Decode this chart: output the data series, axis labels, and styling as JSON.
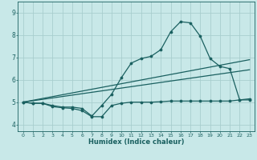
{
  "xlabel": "Humidex (Indice chaleur)",
  "background_color": "#c8e8e8",
  "grid_color": "#a8cece",
  "line_color": "#1a6060",
  "xlim": [
    -0.5,
    23.5
  ],
  "ylim": [
    3.7,
    9.5
  ],
  "yticks": [
    4,
    5,
    6,
    7,
    8,
    9
  ],
  "xticks": [
    0,
    1,
    2,
    3,
    4,
    5,
    6,
    7,
    8,
    9,
    10,
    11,
    12,
    13,
    14,
    15,
    16,
    17,
    18,
    19,
    20,
    21,
    22,
    23
  ],
  "line_main_x": [
    0,
    1,
    2,
    3,
    4,
    5,
    6,
    7,
    8,
    9,
    10,
    11,
    12,
    13,
    14,
    15,
    16,
    17,
    18,
    19,
    20,
    21,
    22,
    23
  ],
  "line_main_y": [
    5.0,
    4.95,
    4.95,
    4.85,
    4.78,
    4.78,
    4.72,
    4.38,
    4.85,
    5.35,
    6.1,
    6.75,
    6.95,
    7.05,
    7.35,
    8.15,
    8.6,
    8.55,
    7.95,
    6.95,
    6.6,
    6.5,
    5.1,
    5.15
  ],
  "line_low_x": [
    0,
    1,
    2,
    3,
    4,
    5,
    6,
    7,
    8,
    9,
    10,
    11,
    12,
    13,
    14,
    15,
    16,
    17,
    18,
    19,
    20,
    21,
    22,
    23
  ],
  "line_low_y": [
    5.0,
    4.95,
    4.95,
    4.8,
    4.75,
    4.72,
    4.62,
    4.35,
    4.35,
    4.85,
    4.95,
    5.0,
    5.0,
    5.0,
    5.02,
    5.05,
    5.05,
    5.05,
    5.05,
    5.05,
    5.05,
    5.05,
    5.1,
    5.1
  ],
  "line_trend1_x": [
    0,
    23
  ],
  "line_trend1_y": [
    5.0,
    6.9
  ],
  "line_trend2_x": [
    0,
    23
  ],
  "line_trend2_y": [
    5.0,
    6.45
  ]
}
